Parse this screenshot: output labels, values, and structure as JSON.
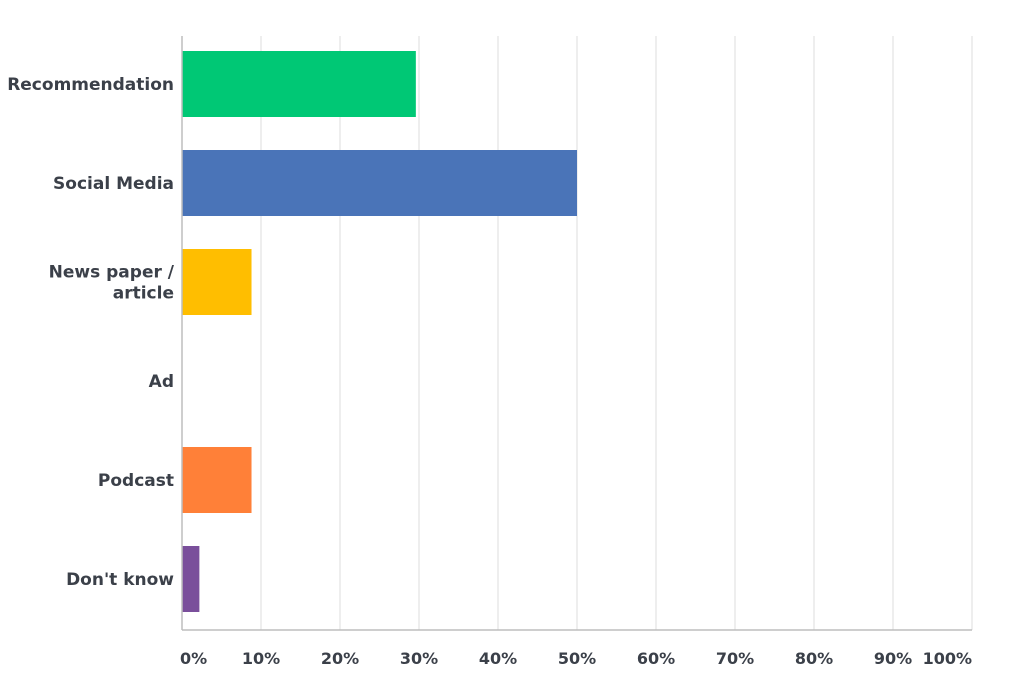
{
  "chart_data": {
    "type": "bar",
    "orientation": "horizontal",
    "categories": [
      [
        "Recommendation"
      ],
      [
        "Social Media"
      ],
      [
        "News paper /",
        "article"
      ],
      [
        "Ad"
      ],
      [
        "Podcast"
      ],
      [
        "Don't know"
      ]
    ],
    "values": [
      29.6,
      50.0,
      8.8,
      0.0,
      8.8,
      2.2
    ],
    "colors": [
      "#00c875",
      "#4a74b8",
      "#ffbe00",
      "#ffffff",
      "#ff8038",
      "#7a4f9b"
    ],
    "xlim": [
      0,
      100
    ],
    "xticks": [
      0,
      10,
      20,
      30,
      40,
      50,
      60,
      70,
      80,
      90,
      100
    ],
    "xtick_labels": [
      "0%",
      "10%",
      "20%",
      "30%",
      "40%",
      "50%",
      "60%",
      "70%",
      "80%",
      "90%",
      "100%"
    ],
    "grid": true,
    "title": "",
    "xlabel": "",
    "ylabel": ""
  }
}
